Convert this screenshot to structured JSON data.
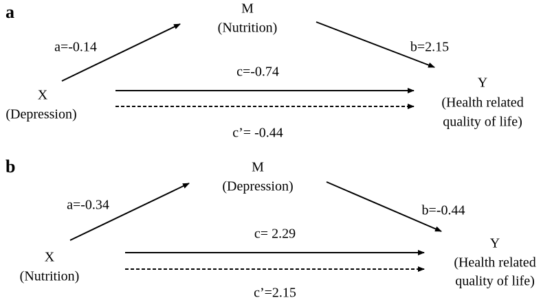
{
  "panels": [
    {
      "letter": "a",
      "mediator": {
        "name": "M",
        "label": "(Nutrition)"
      },
      "x": {
        "name": "X",
        "label": "(Depression)"
      },
      "y": {
        "name": "Y",
        "label_lines": [
          "(Health related",
          "quality of life)"
        ]
      },
      "path_a": "a=-0.14",
      "path_b": "b=2.15",
      "path_c": "c=-0.74",
      "path_c_prime": "c’= -0.44"
    },
    {
      "letter": "b",
      "mediator": {
        "name": "M",
        "label": "(Depression)"
      },
      "x": {
        "name": "X",
        "label": "(Nutrition)"
      },
      "y": {
        "name": "Y",
        "label_lines": [
          "(Health related",
          "quality of life)"
        ]
      },
      "path_a": "a=-0.34",
      "path_b": "b=-0.44",
      "path_c": "c= 2.29",
      "path_c_prime": "c’=2.15"
    }
  ]
}
